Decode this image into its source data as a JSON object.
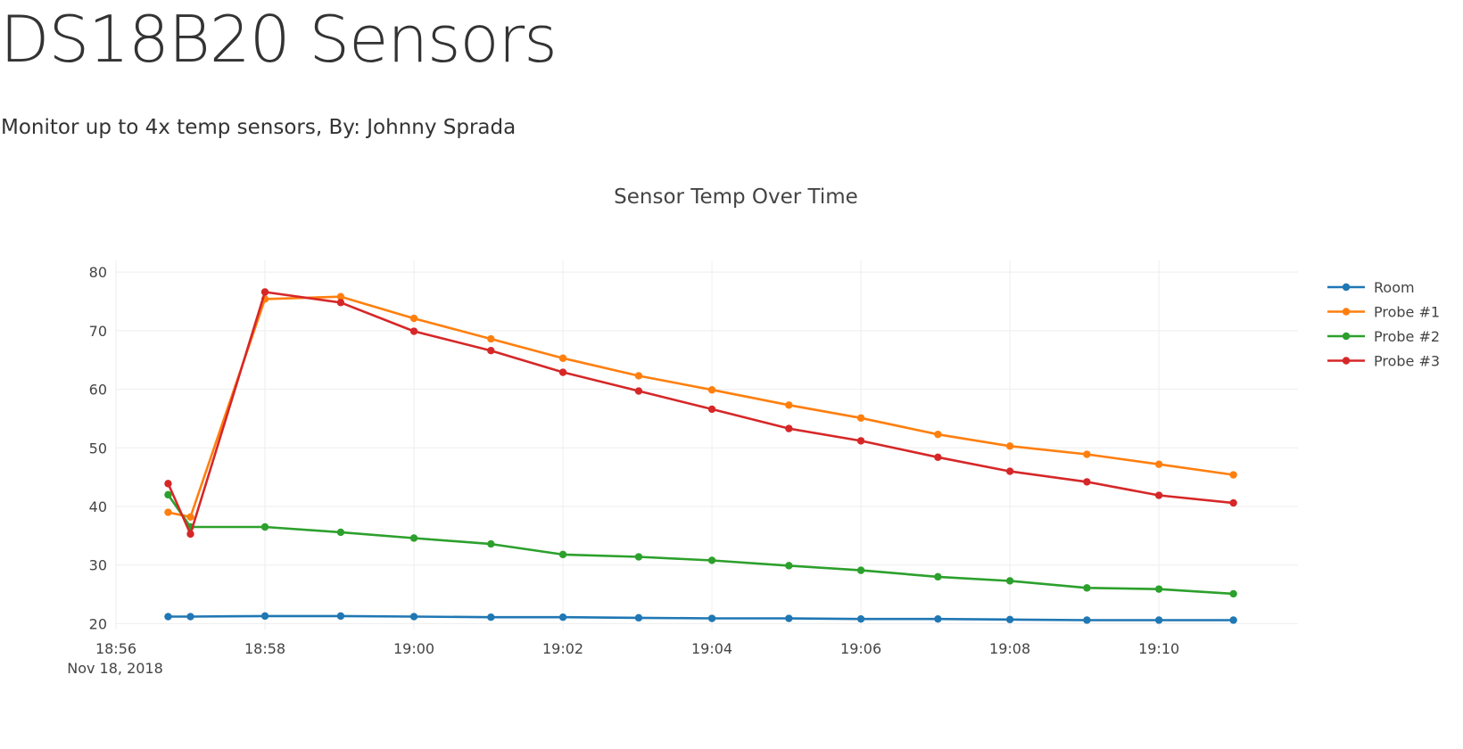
{
  "page": {
    "title": "DS18B20 Sensors",
    "subtitle": "Monitor up to 4x temp sensors, By: Johnny Sprada"
  },
  "chart_data": {
    "type": "line",
    "title": "Sensor Temp Over Time",
    "xlabel": "",
    "ylabel": "",
    "date": "Nov 18, 2018",
    "x_ticks": [
      "18:56",
      "18:58",
      "19:00",
      "19:02",
      "19:04",
      "19:06",
      "19:08",
      "19:10"
    ],
    "y_ticks": [
      20,
      30,
      40,
      50,
      60,
      70,
      80
    ],
    "xlim": [
      "18:56",
      "19:11:52"
    ],
    "ylim": [
      19,
      82
    ],
    "grid": true,
    "legend_position": "right",
    "x": [
      "18:56:42",
      "18:57:00",
      "18:58:00",
      "18:59:01",
      "19:00:00",
      "19:01:02",
      "19:02:00",
      "19:03:01",
      "19:04:00",
      "19:05:02",
      "19:06:00",
      "19:07:02",
      "19:08:00",
      "19:09:02",
      "19:10:00",
      "19:11:00"
    ],
    "series": [
      {
        "name": "Room",
        "color": "#1f77b4",
        "values": [
          21.2,
          21.2,
          21.3,
          21.3,
          21.2,
          21.1,
          21.1,
          21.0,
          20.9,
          20.9,
          20.8,
          20.8,
          20.7,
          20.6,
          20.6,
          20.6
        ]
      },
      {
        "name": "Probe #1",
        "color": "#ff7f0e",
        "values": [
          39.0,
          38.2,
          75.4,
          75.8,
          72.1,
          68.6,
          65.3,
          62.3,
          59.9,
          57.3,
          55.1,
          52.3,
          50.3,
          48.9,
          47.2,
          45.4
        ]
      },
      {
        "name": "Probe #2",
        "color": "#2ca02c",
        "values": [
          42.0,
          36.5,
          36.5,
          35.6,
          34.6,
          33.6,
          31.8,
          31.4,
          30.8,
          29.9,
          29.1,
          28.0,
          27.3,
          26.1,
          25.9,
          25.1
        ]
      },
      {
        "name": "Probe #3",
        "color": "#d62728",
        "values": [
          43.9,
          35.3,
          76.6,
          74.8,
          69.9,
          66.6,
          62.9,
          59.7,
          56.6,
          53.3,
          51.2,
          48.4,
          46.0,
          44.2,
          41.9,
          40.6
        ]
      }
    ]
  }
}
